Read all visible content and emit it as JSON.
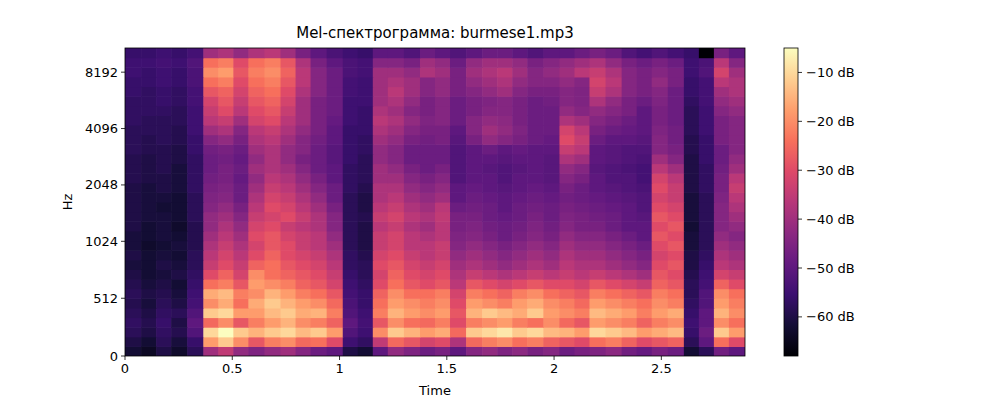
{
  "chart_data": {
    "type": "heatmap",
    "title": "Mel-спектрограмма: burmese1.mp3",
    "x_label": "Time",
    "y_label": "Hz",
    "log": "y",
    "xlim": [
      0,
      2.89
    ],
    "ylim": [
      0,
      11025
    ],
    "xticks": [
      0,
      0.5,
      1,
      1.5,
      2,
      2.5
    ],
    "yticks": [
      0,
      512,
      1024,
      2048,
      4096,
      8192
    ],
    "color_range": [
      -68,
      -5
    ],
    "color_ticks": [
      {
        "value": -10,
        "label": "−10 dB"
      },
      {
        "value": -20,
        "label": "−20 dB"
      },
      {
        "value": -30,
        "label": "−30 dB"
      },
      {
        "value": -40,
        "label": "−40 dB"
      },
      {
        "value": -50,
        "label": "−50 dB"
      },
      {
        "value": -60,
        "label": "−60 dB"
      }
    ],
    "x": [
      0.04,
      0.11,
      0.18,
      0.25,
      0.33,
      0.4,
      0.47,
      0.54,
      0.61,
      0.69,
      0.76,
      0.83,
      0.9,
      0.98,
      1.05,
      1.12,
      1.19,
      1.26,
      1.34,
      1.41,
      1.48,
      1.55,
      1.63,
      1.7,
      1.77,
      1.84,
      1.91,
      1.99,
      2.06,
      2.13,
      2.2,
      2.28,
      2.35,
      2.42,
      2.49,
      2.57,
      2.64,
      2.71,
      2.78,
      2.85
    ],
    "y": [
      43,
      128,
      213,
      299,
      384,
      469,
      555,
      640,
      725,
      811,
      896,
      982,
      1097,
      1236,
      1391,
      1565,
      1762,
      1984,
      2232,
      2512,
      2828,
      3182,
      3582,
      4033,
      4538,
      5109,
      5752,
      6475,
      7285,
      8203,
      9235,
      10390
    ],
    "cells": [
      [
        -62,
        -64,
        -60,
        -63,
        -58,
        -40,
        -35,
        -42,
        -45,
        -42,
        -40,
        -44,
        -48,
        -50,
        -60,
        -62,
        -50,
        -42,
        -45,
        -48,
        -46,
        -50,
        -44,
        -42,
        -45,
        -43,
        -46,
        -44,
        -48,
        -46,
        -45,
        -43,
        -47,
        -49,
        -46,
        -48,
        -62,
        -58,
        -47,
        -50
      ],
      [
        -60,
        -62,
        -58,
        -61,
        -56,
        -18,
        -12,
        -20,
        -28,
        -22,
        -20,
        -25,
        -24,
        -30,
        -55,
        -57,
        -35,
        -25,
        -28,
        -32,
        -30,
        -38,
        -25,
        -22,
        -20,
        -24,
        -22,
        -26,
        -28,
        -30,
        -24,
        -22,
        -26,
        -30,
        -28,
        -26,
        -58,
        -50,
        -24,
        -30
      ],
      [
        -58,
        -60,
        -57,
        -59,
        -52,
        -10,
        -5,
        -12,
        -15,
        -12,
        -10,
        -14,
        -12,
        -18,
        -52,
        -55,
        -20,
        -12,
        -15,
        -18,
        -16,
        -25,
        -12,
        -10,
        -8,
        -12,
        -10,
        -14,
        -15,
        -18,
        -10,
        -12,
        -14,
        -18,
        -16,
        -14,
        -56,
        -48,
        -12,
        -18
      ],
      [
        -57,
        -59,
        -56,
        -60,
        -50,
        -25,
        -20,
        -28,
        -22,
        -18,
        -15,
        -20,
        -22,
        -26,
        -50,
        -54,
        -28,
        -20,
        -24,
        -25,
        -22,
        -30,
        -22,
        -20,
        -18,
        -22,
        -24,
        -20,
        -25,
        -28,
        -18,
        -20,
        -22,
        -26,
        -22,
        -20,
        -55,
        -50,
        -20,
        -24
      ],
      [
        -58,
        -60,
        -57,
        -58,
        -52,
        -12,
        -10,
        -18,
        -18,
        -14,
        -12,
        -16,
        -15,
        -22,
        -52,
        -55,
        -22,
        -15,
        -18,
        -20,
        -18,
        -28,
        -15,
        -12,
        -14,
        -16,
        -12,
        -18,
        -20,
        -22,
        -14,
        -16,
        -18,
        -22,
        -18,
        -16,
        -56,
        -50,
        -15,
        -20
      ],
      [
        -59,
        -61,
        -58,
        -60,
        -54,
        -20,
        -16,
        -24,
        -16,
        -12,
        -15,
        -18,
        -20,
        -25,
        -53,
        -56,
        -24,
        -18,
        -20,
        -22,
        -20,
        -30,
        -18,
        -20,
        -22,
        -18,
        -16,
        -20,
        -22,
        -25,
        -18,
        -20,
        -22,
        -24,
        -20,
        -22,
        -57,
        -52,
        -18,
        -22
      ],
      [
        -58,
        -60,
        -59,
        -61,
        -55,
        -16,
        -14,
        -22,
        -20,
        -15,
        -18,
        -22,
        -24,
        -28,
        -54,
        -56,
        -26,
        -20,
        -24,
        -24,
        -22,
        -32,
        -22,
        -24,
        -26,
        -22,
        -20,
        -24,
        -26,
        -28,
        -22,
        -24,
        -26,
        -28,
        -22,
        -24,
        -58,
        -52,
        -20,
        -24
      ],
      [
        -59,
        -61,
        -60,
        -62,
        -56,
        -24,
        -22,
        -28,
        -18,
        -20,
        -22,
        -26,
        -28,
        -32,
        -55,
        -57,
        -30,
        -24,
        -28,
        -30,
        -28,
        -36,
        -28,
        -30,
        -32,
        -30,
        -28,
        -30,
        -30,
        -32,
        -28,
        -30,
        -32,
        -34,
        -26,
        -28,
        -58,
        -54,
        -26,
        -30
      ],
      [
        -60,
        -62,
        -61,
        -60,
        -57,
        -30,
        -26,
        -32,
        -20,
        -24,
        -26,
        -28,
        -30,
        -34,
        -56,
        -58,
        -32,
        -26,
        -30,
        -32,
        -30,
        -38,
        -34,
        -36,
        -38,
        -36,
        -34,
        -36,
        -34,
        -36,
        -34,
        -36,
        -38,
        -40,
        -28,
        -30,
        -59,
        -55,
        -32,
        -34
      ],
      [
        -61,
        -62,
        -60,
        -61,
        -58,
        -34,
        -30,
        -34,
        -26,
        -24,
        -28,
        -30,
        -32,
        -36,
        -57,
        -58,
        -30,
        -28,
        -32,
        -34,
        -32,
        -40,
        -38,
        -40,
        -42,
        -40,
        -38,
        -40,
        -36,
        -38,
        -38,
        -40,
        -42,
        -44,
        -30,
        -28,
        -60,
        -56,
        -36,
        -38
      ],
      [
        -60,
        -62,
        -61,
        -62,
        -58,
        -36,
        -32,
        -36,
        -30,
        -26,
        -30,
        -32,
        -34,
        -38,
        -57,
        -59,
        -32,
        -30,
        -34,
        -36,
        -34,
        -42,
        -40,
        -42,
        -44,
        -42,
        -40,
        -42,
        -38,
        -40,
        -40,
        -42,
        -44,
        -46,
        -32,
        -30,
        -60,
        -57,
        -38,
        -40
      ],
      [
        -61,
        -63,
        -62,
        -61,
        -59,
        -38,
        -34,
        -38,
        -32,
        -28,
        -30,
        -34,
        -36,
        -40,
        -58,
        -60,
        -34,
        -32,
        -36,
        -36,
        -34,
        -44,
        -42,
        -44,
        -46,
        -44,
        -42,
        -44,
        -40,
        -42,
        -42,
        -44,
        -46,
        -48,
        -30,
        -28,
        -61,
        -58,
        -40,
        -42
      ],
      [
        -61,
        -62,
        -61,
        -62,
        -59,
        -40,
        -36,
        -40,
        -30,
        -28,
        -32,
        -34,
        -36,
        -42,
        -58,
        -60,
        -34,
        -32,
        -36,
        -38,
        -36,
        -45,
        -44,
        -46,
        -48,
        -46,
        -44,
        -46,
        -42,
        -44,
        -44,
        -46,
        -48,
        -50,
        -28,
        -30,
        -61,
        -58,
        -42,
        -44
      ],
      [
        -60,
        -62,
        -61,
        -63,
        -59,
        -42,
        -38,
        -42,
        -32,
        -30,
        -34,
        -36,
        -38,
        -44,
        -58,
        -60,
        -36,
        -34,
        -38,
        -40,
        -36,
        -46,
        -45,
        -47,
        -48,
        -47,
        -45,
        -47,
        -44,
        -46,
        -46,
        -48,
        -50,
        -50,
        -30,
        -28,
        -62,
        -58,
        -44,
        -42
      ],
      [
        -60,
        -61,
        -61,
        -62,
        -58,
        -42,
        -40,
        -44,
        -34,
        -32,
        -30,
        -34,
        -38,
        -44,
        -58,
        -59,
        -34,
        -32,
        -36,
        -38,
        -35,
        -46,
        -46,
        -48,
        -49,
        -48,
        -46,
        -48,
        -45,
        -46,
        -47,
        -48,
        -50,
        -51,
        -28,
        -30,
        -61,
        -58,
        -44,
        -40
      ],
      [
        -60,
        -61,
        -62,
        -62,
        -58,
        -44,
        -42,
        -46,
        -36,
        -30,
        -32,
        -36,
        -40,
        -46,
        -58,
        -60,
        -36,
        -34,
        -38,
        -40,
        -36,
        -48,
        -47,
        -48,
        -50,
        -48,
        -47,
        -48,
        -46,
        -47,
        -48,
        -49,
        -50,
        -52,
        -30,
        -32,
        -61,
        -58,
        -44,
        -38
      ],
      [
        -60,
        -61,
        -61,
        -62,
        -58,
        -45,
        -44,
        -48,
        -38,
        -32,
        -34,
        -38,
        -42,
        -48,
        -58,
        -60,
        -38,
        -36,
        -40,
        -42,
        -40,
        -50,
        -48,
        -49,
        -50,
        -49,
        -48,
        -49,
        -47,
        -48,
        -49,
        -50,
        -51,
        -52,
        -32,
        -34,
        -61,
        -58,
        -45,
        -36
      ],
      [
        -60,
        -61,
        -60,
        -61,
        -57,
        -46,
        -45,
        -48,
        -40,
        -34,
        -36,
        -40,
        -44,
        -48,
        -57,
        -59,
        -38,
        -38,
        -42,
        -44,
        -42,
        -50,
        -49,
        -50,
        -51,
        -50,
        -49,
        -50,
        -46,
        -48,
        -50,
        -51,
        -52,
        -53,
        -30,
        -34,
        -60,
        -57,
        -46,
        -34
      ],
      [
        -59,
        -60,
        -60,
        -61,
        -57,
        -47,
        -46,
        -49,
        -42,
        -36,
        -38,
        -42,
        -46,
        -50,
        -57,
        -58,
        -40,
        -40,
        -44,
        -46,
        -44,
        -52,
        -50,
        -50,
        -52,
        -50,
        -50,
        -51,
        -44,
        -46,
        -50,
        -52,
        -52,
        -54,
        -32,
        -36,
        -60,
        -57,
        -46,
        -36
      ],
      [
        -59,
        -60,
        -59,
        -61,
        -57,
        -48,
        -46,
        -48,
        -40,
        -38,
        -40,
        -44,
        -48,
        -50,
        -57,
        -58,
        -40,
        -42,
        -46,
        -48,
        -46,
        -52,
        -50,
        -51,
        -52,
        -51,
        -50,
        -51,
        -42,
        -44,
        -51,
        -52,
        -53,
        -54,
        -36,
        -40,
        -60,
        -57,
        -47,
        -40
      ],
      [
        -59,
        -60,
        -59,
        -60,
        -57,
        -48,
        -47,
        -49,
        -42,
        -38,
        -42,
        -46,
        -48,
        -51,
        -56,
        -58,
        -42,
        -44,
        -48,
        -48,
        -48,
        -52,
        -50,
        -50,
        -51,
        -50,
        -50,
        -51,
        -38,
        -40,
        -50,
        -51,
        -52,
        -53,
        -40,
        -44,
        -60,
        -56,
        -48,
        -42
      ],
      [
        -58,
        -59,
        -59,
        -60,
        -56,
        -47,
        -46,
        -48,
        -40,
        -38,
        -42,
        -44,
        -48,
        -51,
        -56,
        -57,
        -42,
        -44,
        -48,
        -48,
        -48,
        -52,
        -50,
        -48,
        -50,
        -49,
        -50,
        -50,
        -34,
        -36,
        -50,
        -51,
        -52,
        -52,
        -44,
        -46,
        -59,
        -56,
        -48,
        -44
      ],
      [
        -58,
        -59,
        -58,
        -59,
        -56,
        -44,
        -42,
        -46,
        -38,
        -36,
        -40,
        -44,
        -47,
        -50,
        -56,
        -57,
        -40,
        -42,
        -46,
        -47,
        -46,
        -51,
        -46,
        -42,
        -44,
        -46,
        -48,
        -49,
        -30,
        -34,
        -48,
        -50,
        -50,
        -51,
        -44,
        -47,
        -59,
        -56,
        -46,
        -44
      ],
      [
        -58,
        -58,
        -58,
        -59,
        -55,
        -40,
        -38,
        -44,
        -36,
        -34,
        -38,
        -42,
        -46,
        -50,
        -56,
        -56,
        -38,
        -40,
        -44,
        -46,
        -46,
        -50,
        -44,
        -40,
        -42,
        -45,
        -48,
        -48,
        -32,
        -36,
        -46,
        -48,
        -49,
        -50,
        -45,
        -47,
        -58,
        -55,
        -46,
        -44
      ],
      [
        -57,
        -58,
        -58,
        -58,
        -55,
        -36,
        -34,
        -40,
        -32,
        -30,
        -36,
        -40,
        -46,
        -49,
        -55,
        -56,
        -36,
        -38,
        -42,
        -45,
        -44,
        -48,
        -44,
        -42,
        -43,
        -46,
        -48,
        -48,
        -38,
        -40,
        -44,
        -46,
        -48,
        -50,
        -46,
        -48,
        -58,
        -55,
        -46,
        -44
      ],
      [
        -57,
        -57,
        -57,
        -58,
        -55,
        -34,
        -30,
        -36,
        -30,
        -28,
        -34,
        -40,
        -46,
        -48,
        -55,
        -56,
        -38,
        -40,
        -44,
        -46,
        -44,
        -48,
        -46,
        -44,
        -44,
        -46,
        -48,
        -48,
        -42,
        -44,
        -42,
        -44,
        -46,
        -50,
        -46,
        -48,
        -58,
        -55,
        -44,
        -42
      ],
      [
        -57,
        -57,
        -56,
        -57,
        -54,
        -32,
        -28,
        -34,
        -28,
        -26,
        -32,
        -40,
        -46,
        -48,
        -55,
        -55,
        -40,
        -38,
        -42,
        -46,
        -44,
        -48,
        -46,
        -45,
        -44,
        -46,
        -48,
        -47,
        -44,
        -45,
        -38,
        -42,
        -46,
        -48,
        -45,
        -48,
        -57,
        -54,
        -42,
        -40
      ],
      [
        -56,
        -57,
        -56,
        -57,
        -54,
        -28,
        -26,
        -32,
        -26,
        -24,
        -30,
        -38,
        -44,
        -48,
        -54,
        -55,
        -40,
        -36,
        -40,
        -44,
        -42,
        -46,
        -44,
        -42,
        -40,
        -44,
        -46,
        -46,
        -44,
        -45,
        -34,
        -38,
        -44,
        -46,
        -44,
        -48,
        -56,
        -54,
        -40,
        -38
      ],
      [
        -56,
        -56,
        -55,
        -56,
        -53,
        -24,
        -22,
        -30,
        -24,
        -22,
        -28,
        -36,
        -44,
        -48,
        -54,
        -55,
        -40,
        -38,
        -40,
        -44,
        -42,
        -46,
        -42,
        -40,
        -38,
        -42,
        -44,
        -44,
        -42,
        -44,
        -32,
        -36,
        -44,
        -46,
        -42,
        -46,
        -56,
        -54,
        -36,
        -38
      ],
      [
        -55,
        -56,
        -55,
        -56,
        -53,
        -20,
        -18,
        -28,
        -22,
        -20,
        -26,
        -36,
        -44,
        -48,
        -53,
        -54,
        -40,
        -40,
        -42,
        -38,
        -40,
        -46,
        -40,
        -38,
        -36,
        -40,
        -44,
        -42,
        -40,
        -36,
        -34,
        -38,
        -44,
        -46,
        -44,
        -46,
        -55,
        -52,
        -32,
        -40
      ],
      [
        -55,
        -55,
        -54,
        -55,
        -52,
        -24,
        -22,
        -30,
        -24,
        -22,
        -28,
        -38,
        -46,
        -50,
        -53,
        -54,
        -44,
        -44,
        -46,
        -40,
        -42,
        -48,
        -42,
        -40,
        -40,
        -42,
        -46,
        -44,
        -42,
        -40,
        -38,
        -42,
        -46,
        -48,
        -46,
        -48,
        -55,
        -53,
        -36,
        -44
      ],
      [
        -56,
        -56,
        -55,
        -56,
        -54,
        -40,
        -38,
        -42,
        -38,
        -36,
        -40,
        -46,
        -50,
        -53,
        -55,
        -56,
        -50,
        -50,
        -52,
        -48,
        -50,
        -52,
        -50,
        -48,
        -48,
        -50,
        -52,
        -50,
        -50,
        -48,
        -46,
        -48,
        -52,
        -54,
        -52,
        -54,
        -56,
        -68,
        -46,
        -50
      ]
    ]
  }
}
